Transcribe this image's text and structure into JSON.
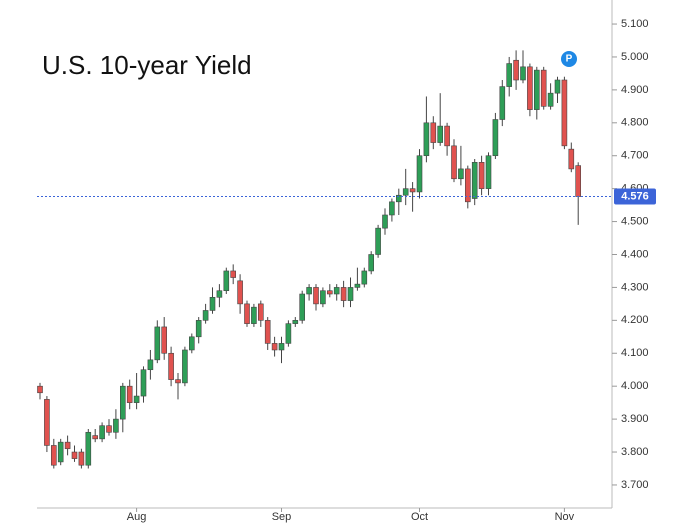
{
  "chart_data": {
    "type": "candlestick",
    "title": "U.S. 10-year Yield",
    "badge": "P",
    "categories": [
      null,
      null,
      null,
      null,
      null,
      null,
      null,
      null,
      null,
      null,
      null,
      null,
      null,
      null,
      "Aug",
      null,
      null,
      null,
      null,
      null,
      null,
      null,
      null,
      null,
      null,
      null,
      null,
      null,
      null,
      null,
      null,
      null,
      null,
      null,
      null,
      "Sep",
      null,
      null,
      null,
      null,
      null,
      null,
      null,
      null,
      null,
      null,
      null,
      null,
      null,
      null,
      null,
      null,
      null,
      null,
      null,
      "Oct",
      null,
      null,
      null,
      null,
      null,
      null,
      null,
      null,
      null,
      null,
      null,
      null,
      null,
      null,
      null,
      null,
      null,
      null,
      null,
      null,
      "Nov",
      null,
      null
    ],
    "open": [
      4.0,
      3.96,
      3.82,
      3.77,
      3.83,
      3.8,
      3.8,
      3.76,
      3.85,
      3.84,
      3.88,
      3.86,
      3.9,
      4.0,
      3.95,
      3.97,
      4.05,
      4.08,
      4.18,
      4.1,
      4.02,
      4.01,
      4.11,
      4.15,
      4.2,
      4.23,
      4.27,
      4.29,
      4.35,
      4.32,
      4.25,
      4.19,
      4.25,
      4.2,
      4.13,
      4.11,
      4.13,
      4.19,
      4.2,
      4.28,
      4.3,
      4.25,
      4.29,
      4.28,
      4.3,
      4.26,
      4.3,
      4.31,
      4.35,
      4.4,
      4.48,
      4.52,
      4.56,
      4.58,
      4.6,
      4.59,
      4.7,
      4.8,
      4.74,
      4.79,
      4.73,
      4.63,
      4.66,
      4.57,
      4.68,
      4.6,
      4.7,
      4.81,
      4.91,
      4.99,
      4.93,
      4.97,
      4.84,
      4.96,
      4.85,
      4.89,
      4.93,
      4.72,
      4.67
    ],
    "high": [
      4.01,
      3.97,
      3.84,
      3.84,
      3.85,
      3.82,
      3.81,
      3.87,
      3.87,
      3.89,
      3.9,
      3.93,
      4.01,
      4.02,
      4.04,
      4.06,
      4.11,
      4.2,
      4.21,
      4.12,
      4.04,
      4.12,
      4.16,
      4.21,
      4.25,
      4.3,
      4.31,
      4.36,
      4.37,
      4.34,
      4.26,
      4.25,
      4.26,
      4.21,
      4.15,
      4.15,
      4.2,
      4.21,
      4.29,
      4.31,
      4.31,
      4.3,
      4.31,
      4.31,
      4.32,
      4.33,
      4.36,
      4.36,
      4.41,
      4.49,
      4.54,
      4.57,
      4.6,
      4.66,
      4.62,
      4.72,
      4.88,
      4.82,
      4.89,
      4.8,
      4.75,
      4.73,
      4.67,
      4.69,
      4.7,
      4.71,
      4.83,
      4.93,
      5.0,
      5.02,
      5.02,
      4.98,
      4.97,
      4.97,
      4.92,
      4.94,
      4.94,
      4.74,
      4.68
    ],
    "low": [
      3.96,
      3.8,
      3.75,
      3.76,
      3.79,
      3.77,
      3.75,
      3.75,
      3.83,
      3.83,
      3.85,
      3.84,
      3.86,
      3.93,
      3.93,
      3.95,
      4.02,
      4.07,
      4.08,
      4.0,
      3.96,
      4.0,
      4.1,
      4.13,
      4.19,
      4.22,
      4.24,
      4.28,
      4.31,
      4.22,
      4.18,
      4.18,
      4.18,
      4.11,
      4.09,
      4.07,
      4.12,
      4.18,
      4.19,
      4.26,
      4.23,
      4.24,
      4.27,
      4.26,
      4.24,
      4.24,
      4.29,
      4.3,
      4.34,
      4.39,
      4.46,
      4.5,
      4.52,
      4.55,
      4.53,
      4.57,
      4.68,
      4.72,
      4.73,
      4.7,
      4.62,
      4.61,
      4.54,
      4.55,
      4.58,
      4.58,
      4.69,
      4.79,
      4.88,
      4.9,
      4.92,
      4.82,
      4.81,
      4.84,
      4.84,
      4.86,
      4.72,
      4.65,
      4.49
    ],
    "close": [
      3.98,
      3.82,
      3.76,
      3.83,
      3.81,
      3.78,
      3.76,
      3.86,
      3.84,
      3.88,
      3.86,
      3.9,
      4.0,
      3.95,
      3.97,
      4.05,
      4.08,
      4.18,
      4.1,
      4.02,
      4.01,
      4.11,
      4.15,
      4.2,
      4.23,
      4.27,
      4.29,
      4.35,
      4.33,
      4.25,
      4.19,
      4.24,
      4.2,
      4.13,
      4.11,
      4.13,
      4.19,
      4.2,
      4.28,
      4.3,
      4.25,
      4.29,
      4.28,
      4.3,
      4.26,
      4.3,
      4.31,
      4.35,
      4.4,
      4.48,
      4.52,
      4.56,
      4.58,
      4.6,
      4.59,
      4.7,
      4.8,
      4.74,
      4.79,
      4.73,
      4.63,
      4.66,
      4.56,
      4.68,
      4.6,
      4.7,
      4.81,
      4.91,
      4.98,
      4.93,
      4.97,
      4.84,
      4.96,
      4.85,
      4.89,
      4.93,
      4.73,
      4.66,
      4.576
    ],
    "up_color": "#2e9e57",
    "down_color": "#e0524f",
    "last_price": 4.576,
    "last_price_color": "#3c64d8",
    "ylim": [
      3.63,
      5.173
    ],
    "yticks": [
      {
        "value": 3.7,
        "label": "3.700"
      },
      {
        "value": 3.8,
        "label": "3.800"
      },
      {
        "value": 3.9,
        "label": "3.900"
      },
      {
        "value": 4.0,
        "label": "4.000"
      },
      {
        "value": 4.1,
        "label": "4.100"
      },
      {
        "value": 4.2,
        "label": "4.200"
      },
      {
        "value": 4.3,
        "label": "4.300"
      },
      {
        "value": 4.4,
        "label": "4.400"
      },
      {
        "value": 4.5,
        "label": "4.500"
      },
      {
        "value": 4.6,
        "label": "4.600"
      },
      {
        "value": 4.7,
        "label": "4.700"
      },
      {
        "value": 4.8,
        "label": "4.800"
      },
      {
        "value": 4.9,
        "label": "4.900"
      },
      {
        "value": 5.0,
        "label": "5.000"
      },
      {
        "value": 5.1,
        "label": "5.100"
      }
    ]
  }
}
